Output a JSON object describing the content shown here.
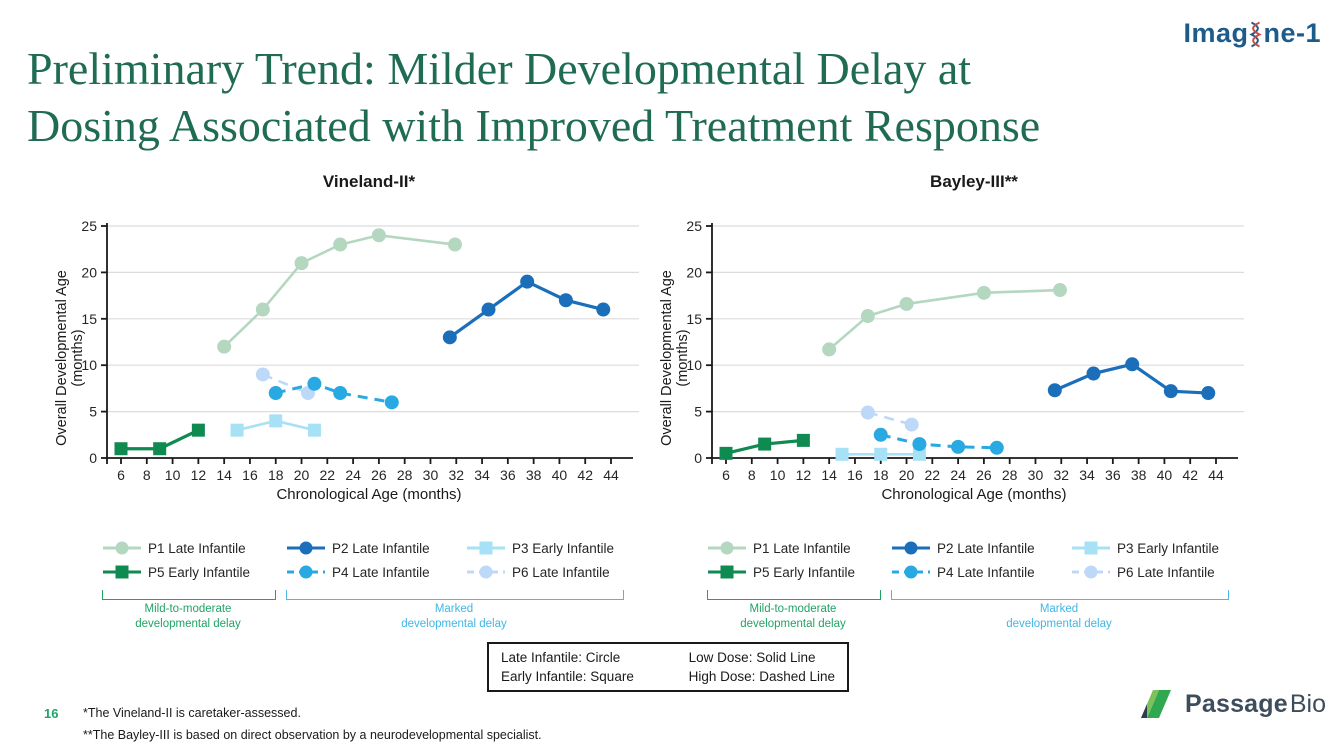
{
  "slide": {
    "imagine_logo": "Imagine-1",
    "imagine_logo_part1": "Imag",
    "imagine_logo_part2": "ne-1",
    "title_line1": "Preliminary Trend: Milder Developmental Delay at",
    "title_line2": "Dosing Associated with Improved Treatment Response",
    "page_number": "16",
    "footnotes": [
      "*The Vineland-II is caretaker-assessed.",
      "**The Bayley-III is based on direct observation by a neurodevelopmental specialist."
    ],
    "passage_logo": {
      "bold": "Passage",
      "light": "Bio"
    }
  },
  "colors": {
    "title_green": "#1f6b54",
    "imagine_blue": "#1d5b8b",
    "mild_group_green": "#21a366",
    "marked_group_blue": "#41b6e6",
    "passage_navy": "#3e4d5b",
    "grid_gray": "#dcdcdc",
    "axis_black": "#1a1a1a"
  },
  "groups": {
    "mild": {
      "line1": "Mild-to-moderate",
      "line2": "developmental delay",
      "color": "#21a366"
    },
    "marked": {
      "line1": "Marked",
      "line2": "developmental delay",
      "color": "#41b6e6"
    }
  },
  "key_box": {
    "col1": [
      "Late Infantile: Circle",
      "Early Infantile: Square"
    ],
    "col2": [
      "Low Dose: Solid Line",
      "High Dose: Dashed Line"
    ]
  },
  "legend": {
    "display_order": [
      0,
      1,
      2,
      4,
      3,
      5
    ]
  },
  "chart_data": [
    {
      "type": "line",
      "title": "Vineland-II*",
      "xlabel": "Chronological Age (months)",
      "ylabel": "Overall Developmental Age (months)",
      "xlim": [
        5,
        45
      ],
      "ylim": [
        0,
        25
      ],
      "xticks": {
        "start": 6,
        "end": 44,
        "step": 2
      },
      "yticks": {
        "start": 0,
        "end": 25,
        "step": 5
      },
      "grid": "horizontal",
      "series": [
        {
          "name": "P1 Late Infantile",
          "marker": "circle",
          "line": "solid",
          "color": "#b4d7c0",
          "width": 2.6,
          "points": [
            [
              14,
              12
            ],
            [
              17,
              16
            ],
            [
              20,
              21
            ],
            [
              23,
              23
            ],
            [
              26,
              24
            ],
            [
              31.9,
              23
            ]
          ]
        },
        {
          "name": "P2 Late Infantile",
          "marker": "circle",
          "line": "solid",
          "color": "#1b6fba",
          "width": 3.2,
          "points": [
            [
              31.5,
              13
            ],
            [
              34.5,
              16
            ],
            [
              37.5,
              19
            ],
            [
              40.5,
              17
            ],
            [
              43.4,
              16
            ]
          ]
        },
        {
          "name": "P3 Early Infantile",
          "marker": "square",
          "line": "solid",
          "color": "#a7e1f6",
          "width": 2.6,
          "points": [
            [
              15,
              3
            ],
            [
              18,
              4
            ],
            [
              21,
              3
            ]
          ]
        },
        {
          "name": "P4 Late Infantile",
          "marker": "circle",
          "line": "dashed",
          "color": "#29a9e1",
          "width": 3,
          "points": [
            [
              18,
              7
            ],
            [
              21,
              8
            ],
            [
              23,
              7
            ],
            [
              27,
              6
            ]
          ]
        },
        {
          "name": "P5 Early Infantile",
          "marker": "square",
          "line": "solid",
          "color": "#0f8a50",
          "width": 3.2,
          "points": [
            [
              6,
              1
            ],
            [
              9,
              1
            ],
            [
              12,
              3
            ]
          ]
        },
        {
          "name": "P6 Late Infantile",
          "marker": "circle",
          "line": "dashed",
          "color": "#bdd9f7",
          "width": 2.6,
          "points": [
            [
              17,
              9
            ],
            [
              20.5,
              7
            ]
          ]
        }
      ]
    },
    {
      "type": "line",
      "title": "Bayley-III**",
      "xlabel": "Chronological Age (months)",
      "ylabel": "Overall Developmental Age (months)",
      "xlim": [
        5,
        45
      ],
      "ylim": [
        0,
        25
      ],
      "xticks": {
        "start": 6,
        "end": 44,
        "step": 2
      },
      "yticks": {
        "start": 0,
        "end": 25,
        "step": 5
      },
      "grid": "horizontal",
      "series": [
        {
          "name": "P1 Late Infantile",
          "marker": "circle",
          "line": "solid",
          "color": "#b4d7c0",
          "width": 2.6,
          "points": [
            [
              14,
              11.7
            ],
            [
              17,
              15.3
            ],
            [
              20,
              16.6
            ],
            [
              26,
              17.8
            ],
            [
              31.9,
              18.1
            ]
          ]
        },
        {
          "name": "P2 Late Infantile",
          "marker": "circle",
          "line": "solid",
          "color": "#1b6fba",
          "width": 3.2,
          "points": [
            [
              31.5,
              7.3
            ],
            [
              34.5,
              9.1
            ],
            [
              37.5,
              10.1
            ],
            [
              40.5,
              7.2
            ],
            [
              43.4,
              7
            ]
          ]
        },
        {
          "name": "P3 Early Infantile",
          "marker": "square",
          "line": "solid",
          "color": "#a7e1f6",
          "width": 2.6,
          "points": [
            [
              15,
              0.4
            ],
            [
              18,
              0.4
            ],
            [
              21,
              0.4
            ]
          ]
        },
        {
          "name": "P4 Late Infantile",
          "marker": "circle",
          "line": "dashed",
          "color": "#29a9e1",
          "width": 3,
          "points": [
            [
              18,
              2.5
            ],
            [
              21,
              1.5
            ],
            [
              24,
              1.2
            ],
            [
              27,
              1.1
            ]
          ]
        },
        {
          "name": "P5 Early Infantile",
          "marker": "square",
          "line": "solid",
          "color": "#0f8a50",
          "width": 3.2,
          "points": [
            [
              6,
              0.5
            ],
            [
              9,
              1.5
            ],
            [
              12,
              1.9
            ]
          ]
        },
        {
          "name": "P6 Late Infantile",
          "marker": "circle",
          "line": "dashed",
          "color": "#bdd9f7",
          "width": 2.6,
          "points": [
            [
              17,
              4.9
            ],
            [
              20.4,
              3.6
            ]
          ]
        }
      ]
    }
  ]
}
